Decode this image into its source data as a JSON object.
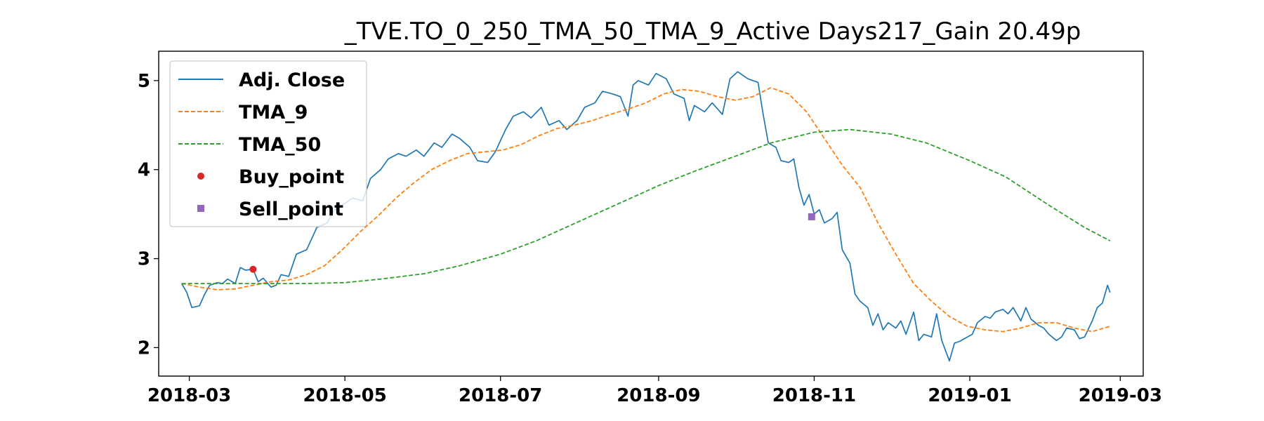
{
  "chart_data": {
    "type": "line",
    "title": "_TVE.TO_0_250_TMA_50_TMA_9_Active Days217_Gain  20.49p",
    "xlabel": "",
    "ylabel": "",
    "xlim": [
      "2018-02-17",
      "2019-03-10"
    ],
    "ylim": [
      1.68,
      5.33
    ],
    "x_ticks": [
      "2018-03",
      "2018-05",
      "2018-07",
      "2018-09",
      "2018-11",
      "2019-01",
      "2019-03"
    ],
    "y_ticks": [
      2,
      3,
      4,
      5
    ],
    "grid": false,
    "legend_position": "top-left",
    "colors": {
      "adj_close": "#1f77b4",
      "tma_9": "#ff7f0e",
      "tma_50": "#2ca02c",
      "buy_point": "#d62728",
      "sell_point": "#9467bd"
    },
    "series": [
      {
        "name": "Adj. Close",
        "style": "solid",
        "points": [
          [
            "2018-02-26",
            2.72
          ],
          [
            "2018-02-28",
            2.62
          ],
          [
            "2018-03-02",
            2.45
          ],
          [
            "2018-03-05",
            2.47
          ],
          [
            "2018-03-07",
            2.6
          ],
          [
            "2018-03-09",
            2.7
          ],
          [
            "2018-03-12",
            2.73
          ],
          [
            "2018-03-14",
            2.72
          ],
          [
            "2018-03-16",
            2.77
          ],
          [
            "2018-03-19",
            2.72
          ],
          [
            "2018-03-21",
            2.9
          ],
          [
            "2018-03-23",
            2.87
          ],
          [
            "2018-03-26",
            2.88
          ],
          [
            "2018-03-28",
            2.74
          ],
          [
            "2018-03-30",
            2.78
          ],
          [
            "2018-04-02",
            2.68
          ],
          [
            "2018-04-04",
            2.7
          ],
          [
            "2018-04-06",
            2.82
          ],
          [
            "2018-04-09",
            2.8
          ],
          [
            "2018-04-12",
            3.05
          ],
          [
            "2018-04-16",
            3.1
          ],
          [
            "2018-04-20",
            3.35
          ],
          [
            "2018-04-24",
            3.4
          ],
          [
            "2018-04-27",
            3.55
          ],
          [
            "2018-05-01",
            3.62
          ],
          [
            "2018-05-04",
            3.68
          ],
          [
            "2018-05-08",
            3.65
          ],
          [
            "2018-05-11",
            3.9
          ],
          [
            "2018-05-15",
            4.0
          ],
          [
            "2018-05-18",
            4.12
          ],
          [
            "2018-05-22",
            4.18
          ],
          [
            "2018-05-25",
            4.15
          ],
          [
            "2018-05-29",
            4.22
          ],
          [
            "2018-06-01",
            4.15
          ],
          [
            "2018-06-05",
            4.3
          ],
          [
            "2018-06-08",
            4.25
          ],
          [
            "2018-06-12",
            4.4
          ],
          [
            "2018-06-15",
            4.35
          ],
          [
            "2018-06-19",
            4.25
          ],
          [
            "2018-06-22",
            4.1
          ],
          [
            "2018-06-26",
            4.08
          ],
          [
            "2018-06-29",
            4.2
          ],
          [
            "2018-07-03",
            4.45
          ],
          [
            "2018-07-06",
            4.6
          ],
          [
            "2018-07-10",
            4.65
          ],
          [
            "2018-07-13",
            4.58
          ],
          [
            "2018-07-17",
            4.7
          ],
          [
            "2018-07-20",
            4.5
          ],
          [
            "2018-07-24",
            4.55
          ],
          [
            "2018-07-27",
            4.45
          ],
          [
            "2018-07-31",
            4.55
          ],
          [
            "2018-08-03",
            4.7
          ],
          [
            "2018-08-07",
            4.75
          ],
          [
            "2018-08-10",
            4.88
          ],
          [
            "2018-08-14",
            4.85
          ],
          [
            "2018-08-17",
            4.82
          ],
          [
            "2018-08-20",
            4.6
          ],
          [
            "2018-08-22",
            4.95
          ],
          [
            "2018-08-24",
            5.0
          ],
          [
            "2018-08-28",
            4.95
          ],
          [
            "2018-08-31",
            5.08
          ],
          [
            "2018-09-04",
            5.02
          ],
          [
            "2018-09-07",
            4.85
          ],
          [
            "2018-09-11",
            4.8
          ],
          [
            "2018-09-13",
            4.55
          ],
          [
            "2018-09-15",
            4.72
          ],
          [
            "2018-09-19",
            4.65
          ],
          [
            "2018-09-22",
            4.75
          ],
          [
            "2018-09-26",
            4.62
          ],
          [
            "2018-09-29",
            5.02
          ],
          [
            "2018-10-02",
            5.1
          ],
          [
            "2018-10-06",
            5.02
          ],
          [
            "2018-10-10",
            4.98
          ],
          [
            "2018-10-12",
            4.62
          ],
          [
            "2018-10-14",
            4.3
          ],
          [
            "2018-10-17",
            4.25
          ],
          [
            "2018-10-19",
            4.1
          ],
          [
            "2018-10-22",
            4.08
          ],
          [
            "2018-10-24",
            4.12
          ],
          [
            "2018-10-26",
            3.8
          ],
          [
            "2018-10-28",
            3.6
          ],
          [
            "2018-10-30",
            3.72
          ],
          [
            "2018-11-01",
            3.5
          ],
          [
            "2018-11-03",
            3.55
          ],
          [
            "2018-11-05",
            3.4
          ],
          [
            "2018-11-08",
            3.45
          ],
          [
            "2018-11-10",
            3.52
          ],
          [
            "2018-11-12",
            3.1
          ],
          [
            "2018-11-15",
            2.95
          ],
          [
            "2018-11-17",
            2.6
          ],
          [
            "2018-11-19",
            2.52
          ],
          [
            "2018-11-22",
            2.45
          ],
          [
            "2018-11-24",
            2.25
          ],
          [
            "2018-11-26",
            2.38
          ],
          [
            "2018-11-28",
            2.2
          ],
          [
            "2018-11-30",
            2.28
          ],
          [
            "2018-12-03",
            2.22
          ],
          [
            "2018-12-05",
            2.3
          ],
          [
            "2018-12-07",
            2.15
          ],
          [
            "2018-12-10",
            2.4
          ],
          [
            "2018-12-12",
            2.08
          ],
          [
            "2018-12-14",
            2.15
          ],
          [
            "2018-12-17",
            2.12
          ],
          [
            "2018-12-19",
            2.38
          ],
          [
            "2018-12-21",
            2.08
          ],
          [
            "2018-12-24",
            1.85
          ],
          [
            "2018-12-26",
            2.05
          ],
          [
            "2018-12-28",
            2.07
          ],
          [
            "2019-01-02",
            2.15
          ],
          [
            "2019-01-04",
            2.28
          ],
          [
            "2019-01-07",
            2.35
          ],
          [
            "2019-01-09",
            2.33
          ],
          [
            "2019-01-11",
            2.4
          ],
          [
            "2019-01-14",
            2.43
          ],
          [
            "2019-01-16",
            2.38
          ],
          [
            "2019-01-18",
            2.45
          ],
          [
            "2019-01-21",
            2.3
          ],
          [
            "2019-01-23",
            2.45
          ],
          [
            "2019-01-25",
            2.32
          ],
          [
            "2019-01-28",
            2.25
          ],
          [
            "2019-01-30",
            2.22
          ],
          [
            "2019-02-01",
            2.15
          ],
          [
            "2019-02-04",
            2.08
          ],
          [
            "2019-02-06",
            2.12
          ],
          [
            "2019-02-08",
            2.22
          ],
          [
            "2019-02-11",
            2.2
          ],
          [
            "2019-02-13",
            2.1
          ],
          [
            "2019-02-15",
            2.12
          ],
          [
            "2019-02-18",
            2.3
          ],
          [
            "2019-02-20",
            2.45
          ],
          [
            "2019-02-22",
            2.5
          ],
          [
            "2019-02-24",
            2.7
          ],
          [
            "2019-02-25",
            2.62
          ]
        ]
      },
      {
        "name": "TMA_9",
        "style": "dashed",
        "points": [
          [
            "2018-02-26",
            2.72
          ],
          [
            "2018-03-05",
            2.68
          ],
          [
            "2018-03-12",
            2.65
          ],
          [
            "2018-03-19",
            2.66
          ],
          [
            "2018-03-26",
            2.7
          ],
          [
            "2018-04-02",
            2.74
          ],
          [
            "2018-04-09",
            2.76
          ],
          [
            "2018-04-16",
            2.82
          ],
          [
            "2018-04-23",
            2.92
          ],
          [
            "2018-04-30",
            3.1
          ],
          [
            "2018-05-07",
            3.3
          ],
          [
            "2018-05-14",
            3.48
          ],
          [
            "2018-05-21",
            3.68
          ],
          [
            "2018-05-28",
            3.85
          ],
          [
            "2018-06-04",
            4.0
          ],
          [
            "2018-06-11",
            4.1
          ],
          [
            "2018-06-18",
            4.18
          ],
          [
            "2018-06-25",
            4.2
          ],
          [
            "2018-07-02",
            4.22
          ],
          [
            "2018-07-09",
            4.28
          ],
          [
            "2018-07-16",
            4.38
          ],
          [
            "2018-07-23",
            4.46
          ],
          [
            "2018-07-30",
            4.5
          ],
          [
            "2018-08-06",
            4.55
          ],
          [
            "2018-08-13",
            4.62
          ],
          [
            "2018-08-20",
            4.68
          ],
          [
            "2018-08-27",
            4.75
          ],
          [
            "2018-09-03",
            4.85
          ],
          [
            "2018-09-10",
            4.9
          ],
          [
            "2018-09-17",
            4.88
          ],
          [
            "2018-09-24",
            4.82
          ],
          [
            "2018-10-01",
            4.78
          ],
          [
            "2018-10-08",
            4.82
          ],
          [
            "2018-10-15",
            4.92
          ],
          [
            "2018-10-22",
            4.85
          ],
          [
            "2018-10-29",
            4.65
          ],
          [
            "2018-11-05",
            4.35
          ],
          [
            "2018-11-12",
            4.05
          ],
          [
            "2018-11-19",
            3.8
          ],
          [
            "2018-11-26",
            3.4
          ],
          [
            "2018-12-03",
            3.05
          ],
          [
            "2018-12-10",
            2.72
          ],
          [
            "2018-12-17",
            2.52
          ],
          [
            "2018-12-24",
            2.35
          ],
          [
            "2018-12-31",
            2.24
          ],
          [
            "2019-01-07",
            2.2
          ],
          [
            "2019-01-14",
            2.18
          ],
          [
            "2019-01-21",
            2.22
          ],
          [
            "2019-01-28",
            2.28
          ],
          [
            "2019-02-04",
            2.28
          ],
          [
            "2019-02-11",
            2.22
          ],
          [
            "2019-02-18",
            2.18
          ],
          [
            "2019-02-25",
            2.24
          ]
        ]
      },
      {
        "name": "TMA_50",
        "style": "dashed",
        "points": [
          [
            "2018-02-26",
            2.72
          ],
          [
            "2018-03-15",
            2.72
          ],
          [
            "2018-04-01",
            2.72
          ],
          [
            "2018-04-15",
            2.72
          ],
          [
            "2018-05-01",
            2.73
          ],
          [
            "2018-05-15",
            2.77
          ],
          [
            "2018-06-01",
            2.83
          ],
          [
            "2018-06-15",
            2.92
          ],
          [
            "2018-07-01",
            3.05
          ],
          [
            "2018-07-15",
            3.2
          ],
          [
            "2018-08-01",
            3.42
          ],
          [
            "2018-08-15",
            3.6
          ],
          [
            "2018-09-01",
            3.82
          ],
          [
            "2018-09-15",
            3.98
          ],
          [
            "2018-10-01",
            4.15
          ],
          [
            "2018-10-15",
            4.3
          ],
          [
            "2018-11-01",
            4.42
          ],
          [
            "2018-11-15",
            4.45
          ],
          [
            "2018-12-01",
            4.4
          ],
          [
            "2018-12-15",
            4.3
          ],
          [
            "2019-01-01",
            4.1
          ],
          [
            "2019-01-15",
            3.92
          ],
          [
            "2019-02-01",
            3.6
          ],
          [
            "2019-02-15",
            3.35
          ],
          [
            "2019-02-25",
            3.2
          ]
        ]
      }
    ],
    "markers": [
      {
        "name": "Buy_point",
        "shape": "circle",
        "points": [
          [
            "2018-03-26",
            2.88
          ]
        ]
      },
      {
        "name": "Sell_point",
        "shape": "square",
        "points": [
          [
            "2018-10-31",
            3.47
          ]
        ]
      }
    ],
    "legend": [
      "Adj. Close",
      "TMA_9",
      "TMA_50",
      "Buy_point",
      "Sell_point"
    ]
  }
}
